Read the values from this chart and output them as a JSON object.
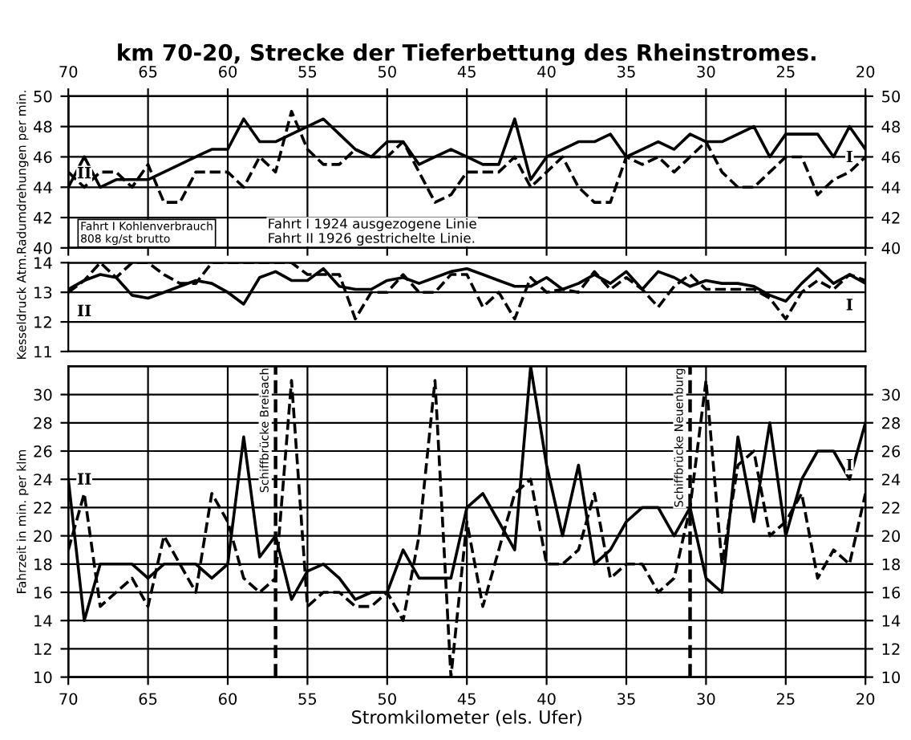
{
  "chart_data": [
    {
      "type": "line",
      "title": "km 70-20, Strecke der Tieferbettung des Rheinstromes.",
      "ylabel": "Radumdrehungen per min.",
      "x": [
        70,
        69,
        68,
        67,
        66,
        65,
        64,
        63,
        62,
        61,
        60,
        59,
        58,
        57,
        56,
        55,
        54,
        53,
        52,
        51,
        50,
        49,
        48,
        47,
        46,
        45,
        44,
        43,
        42,
        41,
        40,
        39,
        38,
        37,
        36,
        35,
        34,
        33,
        32,
        31,
        30,
        29,
        28,
        27,
        26,
        25,
        24,
        23,
        22,
        21,
        20
      ],
      "series": [
        {
          "name": "I",
          "color": "#000000",
          "line_style": "solid",
          "values": [
            44,
            46,
            44,
            44.5,
            44.5,
            44.5,
            45,
            45.5,
            46,
            46.5,
            46.5,
            48.5,
            47,
            47,
            47.5,
            48,
            48.5,
            47.5,
            46.5,
            46,
            47,
            47,
            45.5,
            46,
            46.5,
            46,
            45.5,
            45.5,
            48.5,
            44.5,
            46,
            46.5,
            47,
            47,
            47.5,
            46,
            46.5,
            47,
            46.5,
            47.5,
            47,
            47,
            47.5,
            48,
            46,
            47.5,
            47.5,
            47.5,
            46,
            48,
            46.5
          ]
        },
        {
          "name": "II",
          "color": "#000000",
          "line_style": "dashed",
          "values": [
            45,
            44,
            45,
            45,
            44,
            45.5,
            43,
            43,
            45,
            45,
            45,
            44,
            46,
            45,
            49,
            46.5,
            45.5,
            45.5,
            46.5,
            46,
            46,
            47,
            45,
            43,
            43.5,
            45,
            45,
            45,
            46,
            44,
            45,
            46,
            44,
            43,
            43,
            46,
            45.5,
            46,
            45,
            46,
            47,
            45,
            44,
            44,
            45,
            46,
            46,
            43.5,
            44.5,
            45,
            46
          ]
        }
      ],
      "xlim": [
        70,
        20
      ],
      "x2lim": [
        70,
        20
      ],
      "x2ticks": [
        70,
        65,
        60,
        55,
        50,
        45,
        40,
        35,
        30,
        25,
        20
      ],
      "tick_labels": "y",
      "ylim": [
        40,
        50
      ],
      "yticks": [
        40,
        42,
        44,
        46,
        48,
        50
      ],
      "y2lim": [
        40,
        50
      ],
      "y2ticks": [
        40,
        42,
        44,
        46,
        48,
        50
      ],
      "grid": true,
      "marker": "none",
      "annotations": [
        "Fahrt I 1924 ausgezogene Linie",
        "Fahrt II 1926 gestrichelte Linie.",
        "Fahrt I Kohlenverbrauch\n808 kg/st brutto"
      ]
    },
    {
      "type": "line",
      "ylabel": "Kesseldruck Atm.",
      "x": [
        70,
        69,
        68,
        67,
        66,
        65,
        64,
        63,
        62,
        61,
        60,
        59,
        58,
        57,
        56,
        55,
        54,
        53,
        52,
        51,
        50,
        49,
        48,
        47,
        46,
        45,
        44,
        43,
        42,
        41,
        40,
        39,
        38,
        37,
        36,
        35,
        34,
        33,
        32,
        31,
        30,
        29,
        28,
        27,
        26,
        25,
        24,
        23,
        22,
        21,
        20
      ],
      "series": [
        {
          "name": "I",
          "color": "#000000",
          "line_style": "solid",
          "values": [
            13.1,
            13.4,
            13.6,
            13.5,
            12.9,
            12.8,
            13,
            13.2,
            13.4,
            13.3,
            13,
            12.6,
            13.5,
            13.7,
            13.4,
            13.4,
            13.8,
            13.2,
            13.1,
            13.1,
            13.4,
            13.5,
            13.3,
            13.5,
            13.7,
            13.8,
            13.6,
            13.4,
            13.2,
            13.2,
            13.5,
            13.1,
            13.3,
            13.6,
            13.3,
            13.7,
            13.1,
            13.7,
            13.5,
            13.2,
            13.4,
            13.3,
            13.3,
            13.2,
            12.9,
            12.7,
            13.3,
            13.8,
            13.3,
            13.6,
            13.3
          ]
        },
        {
          "name": "II",
          "color": "#000000",
          "line_style": "dashed",
          "values": [
            13,
            13.4,
            14,
            13.5,
            14,
            14,
            13.6,
            13.3,
            13.3,
            14,
            14,
            14,
            14,
            14,
            14,
            13.6,
            13.6,
            13.6,
            12.1,
            13,
            13,
            13.6,
            13,
            13,
            13.6,
            13.6,
            12.5,
            13,
            12.1,
            13.5,
            13,
            13.1,
            13,
            13.7,
            13.1,
            13.5,
            13.1,
            12.5,
            13.2,
            13.6,
            13.1,
            13.1,
            13.1,
            13.1,
            12.8,
            12.1,
            13,
            13.4,
            13.1,
            13.6,
            13.4
          ]
        }
      ],
      "xlim": [
        70,
        20
      ],
      "tick_labels": "y",
      "ylim": [
        11,
        14
      ],
      "yticks": [
        11,
        12,
        13,
        14
      ],
      "grid": true,
      "marker": "none"
    },
    {
      "type": "line",
      "ylabel": "Fahrzeit in min. per klm",
      "xlabel": "Stromkilometer (els. Ufer)",
      "x": [
        70,
        69,
        68,
        67,
        66,
        65,
        64,
        63,
        62,
        61,
        60,
        59,
        58,
        57,
        56,
        55,
        54,
        53,
        52,
        51,
        50,
        49,
        48,
        47,
        46,
        45,
        44,
        43,
        42,
        41,
        40,
        39,
        38,
        37,
        36,
        35,
        34,
        33,
        32,
        31,
        30,
        29,
        28,
        27,
        26,
        25,
        24,
        23,
        22,
        21,
        20
      ],
      "series": [
        {
          "name": "I",
          "color": "#000000",
          "line_style": "solid",
          "values": [
            24,
            14,
            18,
            18,
            18,
            17,
            18,
            18,
            18,
            17,
            18,
            27,
            18.5,
            20,
            15.5,
            17.5,
            18,
            17,
            15.5,
            16,
            16,
            19,
            17,
            17,
            17,
            22,
            23,
            21,
            19,
            32,
            25,
            20,
            25,
            18,
            19,
            21,
            22,
            22,
            20,
            22,
            17,
            16,
            27,
            21,
            28,
            20,
            24,
            26,
            26,
            24,
            28
          ]
        },
        {
          "name": "II",
          "color": "#000000",
          "line_style": "dashed",
          "values": [
            19,
            23,
            15,
            16,
            17,
            15,
            20,
            18,
            16,
            23,
            21,
            17,
            16,
            17,
            31,
            15,
            16,
            16,
            15,
            15,
            16,
            14,
            20,
            31,
            10,
            21,
            15,
            19,
            23,
            24,
            18,
            18,
            19,
            23,
            17,
            18,
            18,
            16,
            17,
            22,
            31,
            18,
            25,
            26,
            20,
            21,
            23,
            17,
            19,
            18,
            23
          ]
        }
      ],
      "xlim": [
        70,
        20
      ],
      "xticks": [
        70,
        65,
        60,
        55,
        50,
        45,
        40,
        35,
        30,
        25,
        20
      ],
      "ylim": [
        10,
        32
      ],
      "yticks": [
        10,
        12,
        14,
        16,
        18,
        20,
        22,
        24,
        26,
        28,
        30
      ],
      "y2lim": [
        10,
        32
      ],
      "y2ticks": [
        10,
        12,
        14,
        16,
        18,
        20,
        22,
        24,
        26,
        28,
        30
      ],
      "grid": true,
      "marker": "none",
      "ref_lines": [
        {
          "axis": "x",
          "value": 57,
          "label": "Schiffbrücke Breisach",
          "line_style": "dashed",
          "color": "#000000"
        },
        {
          "axis": "x",
          "value": 31,
          "label": "Schiffbrücke Neuenburg",
          "line_style": "dashed",
          "color": "#000000"
        }
      ]
    }
  ]
}
